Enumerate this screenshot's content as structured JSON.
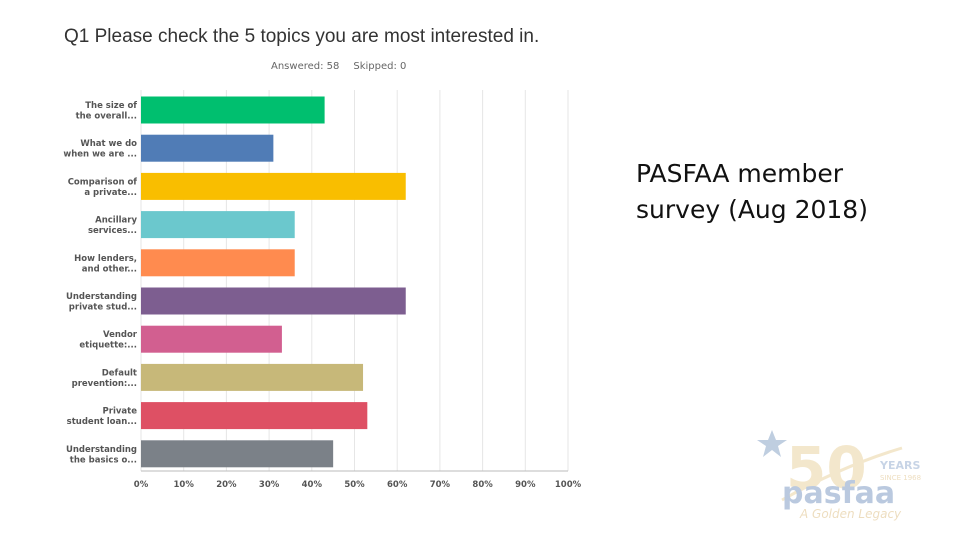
{
  "survey": {
    "question": "Q1 Please check the 5 topics you are most interested in.",
    "answered_label": "Answered: 58",
    "skipped_label": "Skipped: 0"
  },
  "caption": {
    "line1": "PASFAA member",
    "line2": "survey (Aug 2018)"
  },
  "logo": {
    "big_text": "pasfaa",
    "years": "YEARS",
    "since": "SINCE 1968",
    "tagline": "A Golden Legacy",
    "fifty": "50"
  },
  "chart_data": {
    "type": "bar",
    "orientation": "horizontal",
    "categories": [
      [
        "The size of",
        "the overall..."
      ],
      [
        "What we do",
        "when we are ..."
      ],
      [
        "Comparison of",
        "a private..."
      ],
      [
        "Ancillary",
        "services..."
      ],
      [
        "How lenders,",
        "and other..."
      ],
      [
        "Understanding",
        "private stud..."
      ],
      [
        "Vendor",
        "etiquette:..."
      ],
      [
        "Default",
        "prevention:..."
      ],
      [
        "Private",
        "student loan..."
      ],
      [
        "Understanding",
        "the basics o..."
      ]
    ],
    "values": [
      43,
      31,
      62,
      36,
      36,
      62,
      33,
      52,
      53,
      45
    ],
    "value_unit": "%",
    "xlim": [
      0,
      100
    ],
    "x_ticks": [
      "0%",
      "10%",
      "20%",
      "30%",
      "40%",
      "50%",
      "60%",
      "70%",
      "80%",
      "90%",
      "100%"
    ],
    "colors": [
      "#00bf6f",
      "#507cb6",
      "#f9be00",
      "#6bc8cd",
      "#ff8b4f",
      "#7d5e90",
      "#d25f90",
      "#c7b879",
      "#de5064",
      "#7b8188"
    ],
    "grid": true
  }
}
